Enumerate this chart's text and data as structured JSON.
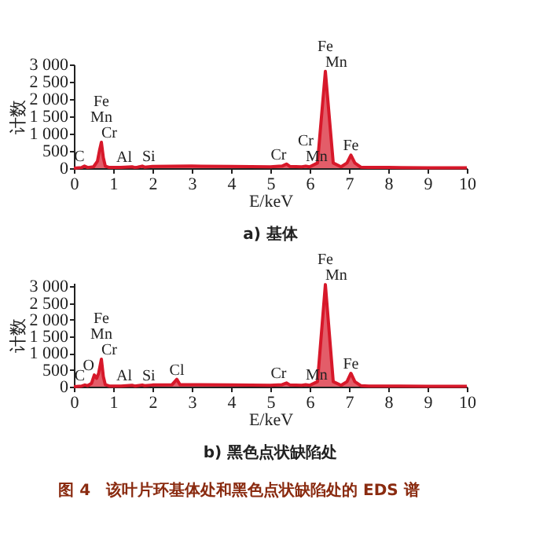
{
  "chart_data": [
    {
      "type": "area",
      "title": "a) 基体",
      "xlabel": "E/keV",
      "ylabel": "计数",
      "color": "#d7182a",
      "x": [
        0,
        0.2,
        0.27,
        0.35,
        0.5,
        0.6,
        0.65,
        0.7,
        0.75,
        0.8,
        0.9,
        1.0,
        1.2,
        1.48,
        1.55,
        1.62,
        1.74,
        1.8,
        1.9,
        2,
        3,
        4,
        5,
        5.3,
        5.41,
        5.5,
        5.8,
        5.9,
        6.0,
        6.2,
        6.4,
        6.6,
        6.8,
        6.95,
        7.05,
        7.15,
        7.3,
        7.5,
        8,
        9,
        10
      ],
      "values": [
        0,
        20,
        60,
        20,
        40,
        200,
        500,
        750,
        300,
        60,
        20,
        20,
        20,
        40,
        20,
        30,
        60,
        30,
        40,
        50,
        60,
        50,
        40,
        60,
        120,
        50,
        40,
        60,
        40,
        150,
        2800,
        150,
        40,
        150,
        380,
        150,
        30,
        20,
        20,
        10,
        10
      ],
      "xlim": [
        0,
        10
      ],
      "xticks": [
        0,
        1,
        2,
        3,
        4,
        5,
        6,
        7,
        8,
        9,
        10
      ],
      "ylim": [
        0,
        3000
      ],
      "yticks": [
        0,
        500,
        {
          "value": 1000,
          "label": "1 000"
        },
        {
          "value": 1500,
          "label": "1 500"
        },
        {
          "value": 2000,
          "label": "2 000"
        },
        {
          "value": 2500,
          "label": "2 500"
        },
        {
          "value": 3000,
          "label": "3 000"
        }
      ],
      "grid": false,
      "annotations": [
        {
          "text": "C",
          "x": 0.27,
          "y": 60
        },
        {
          "text": "Cr",
          "x": 0.7,
          "y": 750
        },
        {
          "text": "Mn",
          "x": 0.7,
          "y": 750
        },
        {
          "text": "Fe",
          "x": 0.7,
          "y": 750
        },
        {
          "text": "Al",
          "x": 1.48,
          "y": 40
        },
        {
          "text": "Si",
          "x": 1.74,
          "y": 60
        },
        {
          "text": "Cr",
          "x": 5.41,
          "y": 120
        },
        {
          "text": "Mn",
          "x": 5.9,
          "y": 60
        },
        {
          "text": "Cr",
          "x": 5.9,
          "y": 60
        },
        {
          "text": "Mn",
          "x": 6.4,
          "y": 2800
        },
        {
          "text": "Fe",
          "x": 6.4,
          "y": 2800
        },
        {
          "text": "Fe",
          "x": 7.05,
          "y": 380
        }
      ]
    },
    {
      "type": "area",
      "title": "b) 黑色点状缺陷处",
      "xlabel": "E/keV",
      "ylabel": "计数",
      "color": "#d7182a",
      "x": [
        0,
        0.2,
        0.28,
        0.35,
        0.45,
        0.52,
        0.58,
        0.63,
        0.7,
        0.75,
        0.8,
        0.9,
        1.0,
        1.2,
        1.48,
        1.55,
        1.62,
        1.74,
        1.8,
        2,
        2.5,
        2.62,
        2.7,
        3,
        4,
        5,
        5.3,
        5.41,
        5.5,
        5.8,
        5.9,
        6.0,
        6.2,
        6.4,
        6.6,
        6.8,
        6.95,
        7.05,
        7.15,
        7.3,
        7.5,
        8,
        9,
        10
      ],
      "values": [
        0,
        20,
        50,
        30,
        100,
        350,
        250,
        400,
        820,
        300,
        60,
        20,
        20,
        20,
        40,
        20,
        30,
        50,
        30,
        50,
        60,
        220,
        60,
        60,
        50,
        40,
        60,
        110,
        50,
        40,
        60,
        40,
        150,
        3050,
        150,
        40,
        150,
        400,
        150,
        30,
        20,
        20,
        10,
        10
      ],
      "xlim": [
        0,
        10
      ],
      "xticks": [
        0,
        1,
        2,
        3,
        4,
        5,
        6,
        7,
        8,
        9,
        10
      ],
      "ylim": [
        0,
        3100
      ],
      "yticks": [
        0,
        500,
        {
          "value": 1000,
          "label": "1 000"
        },
        {
          "value": 1500,
          "label": "1 500"
        },
        {
          "value": 2000,
          "label": "2 000"
        },
        {
          "value": 2500,
          "label": "2 500"
        },
        {
          "value": 3000,
          "label": "3 000"
        }
      ],
      "grid": false,
      "annotations": [
        {
          "text": "C",
          "x": 0.28,
          "y": 50
        },
        {
          "text": "O",
          "x": 0.52,
          "y": 350
        },
        {
          "text": "Cr",
          "x": 0.7,
          "y": 820
        },
        {
          "text": "Mn",
          "x": 0.7,
          "y": 820
        },
        {
          "text": "Fe",
          "x": 0.7,
          "y": 820
        },
        {
          "text": "Al",
          "x": 1.48,
          "y": 40
        },
        {
          "text": "Si",
          "x": 1.74,
          "y": 50
        },
        {
          "text": "Cl",
          "x": 2.62,
          "y": 220
        },
        {
          "text": "Cr",
          "x": 5.41,
          "y": 110
        },
        {
          "text": "Mn",
          "x": 5.9,
          "y": 60
        },
        {
          "text": "Mn",
          "x": 6.4,
          "y": 3050
        },
        {
          "text": "Fe",
          "x": 6.4,
          "y": 3050
        },
        {
          "text": "Fe",
          "x": 7.05,
          "y": 400
        },
        "图 4　该叶片环基体处和黑色点状缺陷处的 EDS 谱"
      ]
    }
  ]
}
